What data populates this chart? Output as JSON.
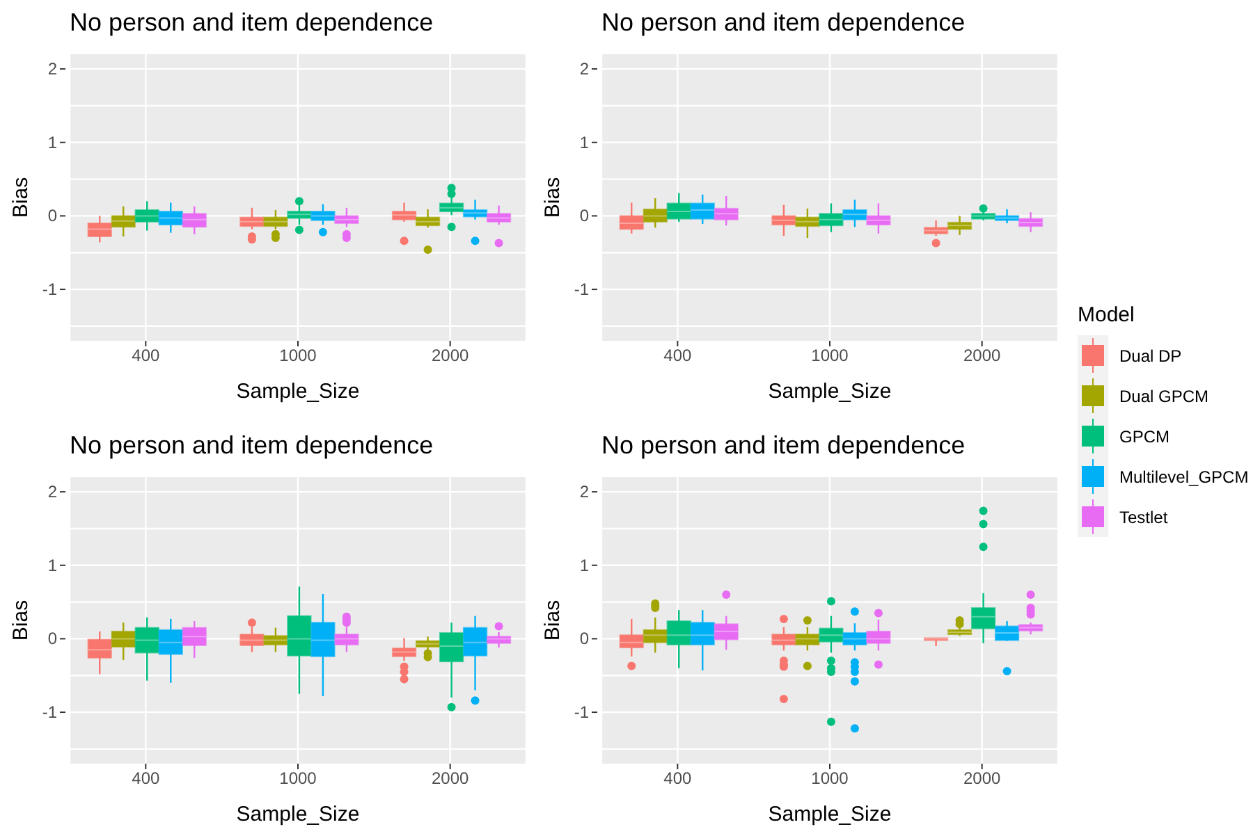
{
  "chart_data": [
    {
      "type": "box",
      "title": "No person and item dependence",
      "xlabel": "Sample_Size",
      "ylabel": "Bias",
      "categories": [
        "400",
        "1000",
        "2000"
      ],
      "ylim": [
        -1.7,
        2.2
      ],
      "yticks": [
        {
          "value": -1.5,
          "label": null
        },
        -1,
        {
          "value": -0.5,
          "label": null
        },
        0,
        {
          "value": 0.5,
          "label": null
        },
        1,
        {
          "value": 1.5,
          "label": null
        },
        2
      ],
      "grid": true,
      "legend": "right",
      "legend_title": "Model",
      "series": [
        {
          "name": "Dual DP",
          "color": "#f8766d",
          "boxes": [
            {
              "low": -0.36,
              "q1": -0.28,
              "median": -0.18,
              "q3": -0.1,
              "high": 0.0
            },
            {
              "low": -0.18,
              "q1": -0.14,
              "median": -0.08,
              "q3": -0.02,
              "high": 0.11,
              "outliers": [
                -0.28,
                -0.32
              ]
            },
            {
              "low": -0.08,
              "q1": -0.05,
              "median": 0.01,
              "q3": 0.06,
              "high": 0.18,
              "outliers": [
                -0.34
              ]
            }
          ]
        },
        {
          "name": "Dual GPCM",
          "color": "#a3a500",
          "boxes": [
            {
              "low": -0.28,
              "q1": -0.15,
              "median": -0.07,
              "q3": 0.0,
              "high": 0.13
            },
            {
              "low": -0.18,
              "q1": -0.14,
              "median": -0.08,
              "q3": -0.02,
              "high": 0.08,
              "outliers": [
                -0.25,
                -0.3
              ]
            },
            {
              "low": -0.16,
              "q1": -0.13,
              "median": -0.08,
              "q3": -0.02,
              "high": 0.09,
              "outliers": [
                -0.46
              ]
            }
          ]
        },
        {
          "name": "GPCM",
          "color": "#00bf7d",
          "boxes": [
            {
              "low": -0.2,
              "q1": -0.08,
              "median": 0.0,
              "q3": 0.08,
              "high": 0.2
            },
            {
              "low": -0.12,
              "q1": -0.03,
              "median": 0.02,
              "q3": 0.06,
              "high": 0.15,
              "outliers": [
                0.2,
                -0.19
              ]
            },
            {
              "low": 0.01,
              "q1": 0.06,
              "median": 0.11,
              "q3": 0.17,
              "high": 0.27,
              "outliers": [
                0.3,
                0.38,
                -0.15
              ]
            }
          ]
        },
        {
          "name": "Multilevel_GPCM",
          "color": "#00b0f6",
          "boxes": [
            {
              "low": -0.23,
              "q1": -0.12,
              "median": -0.03,
              "q3": 0.06,
              "high": 0.18
            },
            {
              "low": -0.12,
              "q1": -0.06,
              "median": 0.0,
              "q3": 0.06,
              "high": 0.16,
              "outliers": [
                -0.22
              ]
            },
            {
              "low": -0.05,
              "q1": -0.01,
              "median": 0.04,
              "q3": 0.08,
              "high": 0.22,
              "outliers": [
                -0.34
              ]
            }
          ]
        },
        {
          "name": "Testlet",
          "color": "#e76bf3",
          "boxes": [
            {
              "low": -0.25,
              "q1": -0.15,
              "median": -0.05,
              "q3": 0.03,
              "high": 0.13
            },
            {
              "low": -0.15,
              "q1": -0.1,
              "median": -0.05,
              "q3": 0.0,
              "high": 0.11,
              "outliers": [
                -0.25,
                -0.3
              ]
            },
            {
              "low": -0.12,
              "q1": -0.08,
              "median": -0.03,
              "q3": 0.03,
              "high": 0.14,
              "outliers": [
                -0.37
              ]
            }
          ]
        }
      ]
    },
    {
      "type": "box",
      "title": "No person and item dependence",
      "xlabel": "Sample_Size",
      "ylabel": "Bias",
      "categories": [
        "400",
        "1000",
        "2000"
      ],
      "ylim": [
        -1.7,
        2.2
      ],
      "yticks": [
        {
          "value": -1.5,
          "label": null
        },
        -1,
        {
          "value": -0.5,
          "label": null
        },
        0,
        {
          "value": 0.5,
          "label": null
        },
        1,
        {
          "value": 1.5,
          "label": null
        },
        2
      ],
      "grid": true,
      "series": [
        {
          "color": "#f8766d",
          "boxes": [
            {
              "low": -0.24,
              "q1": -0.18,
              "median": -0.1,
              "q3": 0.0,
              "high": 0.18
            },
            {
              "low": -0.27,
              "q1": -0.12,
              "median": -0.06,
              "q3": 0.0,
              "high": 0.15
            },
            {
              "low": -0.27,
              "q1": -0.24,
              "median": -0.2,
              "q3": -0.16,
              "high": -0.06,
              "outliers": [
                -0.37
              ]
            }
          ]
        },
        {
          "color": "#a3a500",
          "boxes": [
            {
              "low": -0.16,
              "q1": -0.08,
              "median": 0.0,
              "q3": 0.09,
              "high": 0.24
            },
            {
              "low": -0.3,
              "q1": -0.14,
              "median": -0.08,
              "q3": -0.02,
              "high": 0.1
            },
            {
              "low": -0.26,
              "q1": -0.18,
              "median": -0.13,
              "q3": -0.09,
              "high": 0.0
            }
          ]
        },
        {
          "color": "#00bf7d",
          "boxes": [
            {
              "low": -0.08,
              "q1": -0.04,
              "median": 0.06,
              "q3": 0.17,
              "high": 0.31
            },
            {
              "low": -0.22,
              "q1": -0.13,
              "median": -0.05,
              "q3": 0.03,
              "high": 0.17
            },
            {
              "low": -0.06,
              "q1": -0.04,
              "median": 0.0,
              "q3": 0.03,
              "high": 0.08,
              "outliers": [
                0.1
              ]
            }
          ]
        },
        {
          "color": "#00b0f6",
          "boxes": [
            {
              "low": -0.11,
              "q1": -0.04,
              "median": 0.08,
              "q3": 0.17,
              "high": 0.29
            },
            {
              "low": -0.15,
              "q1": -0.05,
              "median": 0.02,
              "q3": 0.08,
              "high": 0.22
            },
            {
              "low": -0.1,
              "q1": -0.06,
              "median": -0.03,
              "q3": 0.0,
              "high": 0.09
            }
          ]
        },
        {
          "color": "#e76bf3",
          "boxes": [
            {
              "low": -0.13,
              "q1": -0.05,
              "median": 0.03,
              "q3": 0.1,
              "high": 0.27
            },
            {
              "low": -0.24,
              "q1": -0.12,
              "median": -0.06,
              "q3": 0.0,
              "high": 0.17
            },
            {
              "low": -0.22,
              "q1": -0.14,
              "median": -0.09,
              "q3": -0.04,
              "high": 0.05
            }
          ]
        }
      ]
    },
    {
      "type": "box",
      "title": "No person and item dependence",
      "xlabel": "Sample_Size",
      "ylabel": "Bias",
      "categories": [
        "400",
        "1000",
        "2000"
      ],
      "ylim": [
        -1.7,
        2.2
      ],
      "yticks": [
        {
          "value": -1.5,
          "label": null
        },
        -1,
        {
          "value": -0.5,
          "label": null
        },
        0,
        {
          "value": 0.5,
          "label": null
        },
        1,
        {
          "value": 1.5,
          "label": null
        },
        2
      ],
      "grid": true,
      "series": [
        {
          "color": "#f8766d",
          "boxes": [
            {
              "low": -0.48,
              "q1": -0.26,
              "median": -0.15,
              "q3": -0.01,
              "high": 0.1
            },
            {
              "low": -0.18,
              "q1": -0.09,
              "median": -0.02,
              "q3": 0.06,
              "high": 0.16,
              "outliers": [
                0.22
              ]
            },
            {
              "low": -0.3,
              "q1": -0.24,
              "median": -0.18,
              "q3": -0.13,
              "high": 0.01,
              "outliers": [
                -0.38,
                -0.45,
                -0.55
              ]
            }
          ]
        },
        {
          "color": "#a3a500",
          "boxes": [
            {
              "low": -0.29,
              "q1": -0.11,
              "median": 0.0,
              "q3": 0.1,
              "high": 0.22
            },
            {
              "low": -0.18,
              "q1": -0.08,
              "median": -0.02,
              "q3": 0.04,
              "high": 0.15
            },
            {
              "low": -0.15,
              "q1": -0.11,
              "median": -0.07,
              "q3": -0.03,
              "high": 0.03,
              "outliers": [
                -0.2,
                -0.25
              ]
            }
          ]
        },
        {
          "color": "#00bf7d",
          "boxes": [
            {
              "low": -0.57,
              "q1": -0.19,
              "median": -0.02,
              "q3": 0.15,
              "high": 0.29
            },
            {
              "low": -0.75,
              "q1": -0.23,
              "median": 0.0,
              "q3": 0.31,
              "high": 0.71
            },
            {
              "low": -0.8,
              "q1": -0.31,
              "median": -0.1,
              "q3": 0.08,
              "high": 0.22,
              "outliers": [
                -0.93
              ]
            }
          ]
        },
        {
          "color": "#00b0f6",
          "boxes": [
            {
              "low": -0.6,
              "q1": -0.21,
              "median": -0.05,
              "q3": 0.12,
              "high": 0.27
            },
            {
              "low": -0.78,
              "q1": -0.24,
              "median": -0.02,
              "q3": 0.22,
              "high": 0.61
            },
            {
              "low": -0.7,
              "q1": -0.23,
              "median": -0.05,
              "q3": 0.15,
              "high": 0.31,
              "outliers": [
                -0.84
              ]
            }
          ]
        },
        {
          "color": "#e76bf3",
          "boxes": [
            {
              "low": -0.26,
              "q1": -0.09,
              "median": 0.03,
              "q3": 0.15,
              "high": 0.24
            },
            {
              "low": -0.18,
              "q1": -0.08,
              "median": 0.0,
              "q3": 0.06,
              "high": 0.16,
              "outliers": [
                0.22,
                0.26,
                0.3
              ]
            },
            {
              "low": -0.12,
              "q1": -0.06,
              "median": 0.0,
              "q3": 0.03,
              "high": 0.09,
              "outliers": [
                0.17
              ]
            }
          ]
        }
      ]
    },
    {
      "type": "box",
      "title": "No person and item dependence",
      "xlabel": "Sample_Size",
      "ylabel": "Bias",
      "categories": [
        "400",
        "1000",
        "2000"
      ],
      "ylim": [
        -1.7,
        2.2
      ],
      "yticks": [
        {
          "value": -1.5,
          "label": null
        },
        -1,
        {
          "value": -0.5,
          "label": null
        },
        0,
        {
          "value": 0.5,
          "label": null
        },
        1,
        {
          "value": 1.5,
          "label": null
        },
        2
      ],
      "grid": true,
      "series": [
        {
          "color": "#f8766d",
          "boxes": [
            {
              "low": -0.24,
              "q1": -0.12,
              "median": -0.05,
              "q3": 0.05,
              "high": 0.27,
              "outliers": [
                -0.37
              ]
            },
            {
              "low": -0.16,
              "q1": -0.08,
              "median": -0.02,
              "q3": 0.06,
              "high": 0.16,
              "outliers": [
                0.27,
                -0.3,
                -0.35,
                -0.38,
                -0.82
              ]
            },
            {
              "low": -0.1,
              "q1": -0.02,
              "median": 0.0,
              "q3": 0.01,
              "high": 0.01
            }
          ]
        },
        {
          "color": "#a3a500",
          "boxes": [
            {
              "low": -0.19,
              "q1": -0.05,
              "median": 0.05,
              "q3": 0.12,
              "high": 0.29,
              "outliers": [
                0.42,
                0.45,
                0.48
              ]
            },
            {
              "low": -0.16,
              "q1": -0.08,
              "median": 0.0,
              "q3": 0.06,
              "high": 0.16,
              "outliers": [
                0.25,
                -0.37
              ]
            },
            {
              "low": 0.04,
              "q1": 0.06,
              "median": 0.09,
              "q3": 0.12,
              "high": 0.19,
              "outliers": [
                0.2,
                0.25
              ]
            }
          ]
        },
        {
          "color": "#00bf7d",
          "boxes": [
            {
              "low": -0.4,
              "q1": -0.08,
              "median": 0.05,
              "q3": 0.24,
              "high": 0.39
            },
            {
              "low": -0.19,
              "q1": -0.04,
              "median": 0.05,
              "q3": 0.14,
              "high": 0.31,
              "outliers": [
                0.51,
                -0.3,
                -0.4,
                -0.45,
                -1.13
              ]
            },
            {
              "low": -0.06,
              "q1": 0.14,
              "median": 0.3,
              "q3": 0.42,
              "high": 0.62,
              "outliers": [
                1.25,
                1.56,
                1.74
              ]
            }
          ]
        },
        {
          "color": "#00b0f6",
          "boxes": [
            {
              "low": -0.43,
              "q1": -0.08,
              "median": 0.05,
              "q3": 0.22,
              "high": 0.39
            },
            {
              "low": -0.16,
              "q1": -0.08,
              "median": 0.0,
              "q3": 0.08,
              "high": 0.21,
              "outliers": [
                0.37,
                -0.32,
                -0.38,
                -0.45,
                -0.58,
                -1.22
              ]
            },
            {
              "low": -0.03,
              "q1": -0.02,
              "median": 0.08,
              "q3": 0.17,
              "high": 0.24,
              "outliers": [
                -0.44
              ]
            }
          ]
        },
        {
          "color": "#e76bf3",
          "boxes": [
            {
              "low": -0.15,
              "q1": -0.01,
              "median": 0.1,
              "q3": 0.2,
              "high": 0.31,
              "outliers": [
                0.6
              ]
            },
            {
              "low": -0.16,
              "q1": -0.06,
              "median": 0.0,
              "q3": 0.1,
              "high": 0.26,
              "outliers": [
                0.35,
                -0.35
              ]
            },
            {
              "low": 0.06,
              "q1": 0.11,
              "median": 0.15,
              "q3": 0.19,
              "high": 0.22,
              "outliers": [
                0.33,
                0.38,
                0.42,
                0.6
              ]
            }
          ]
        }
      ]
    }
  ]
}
